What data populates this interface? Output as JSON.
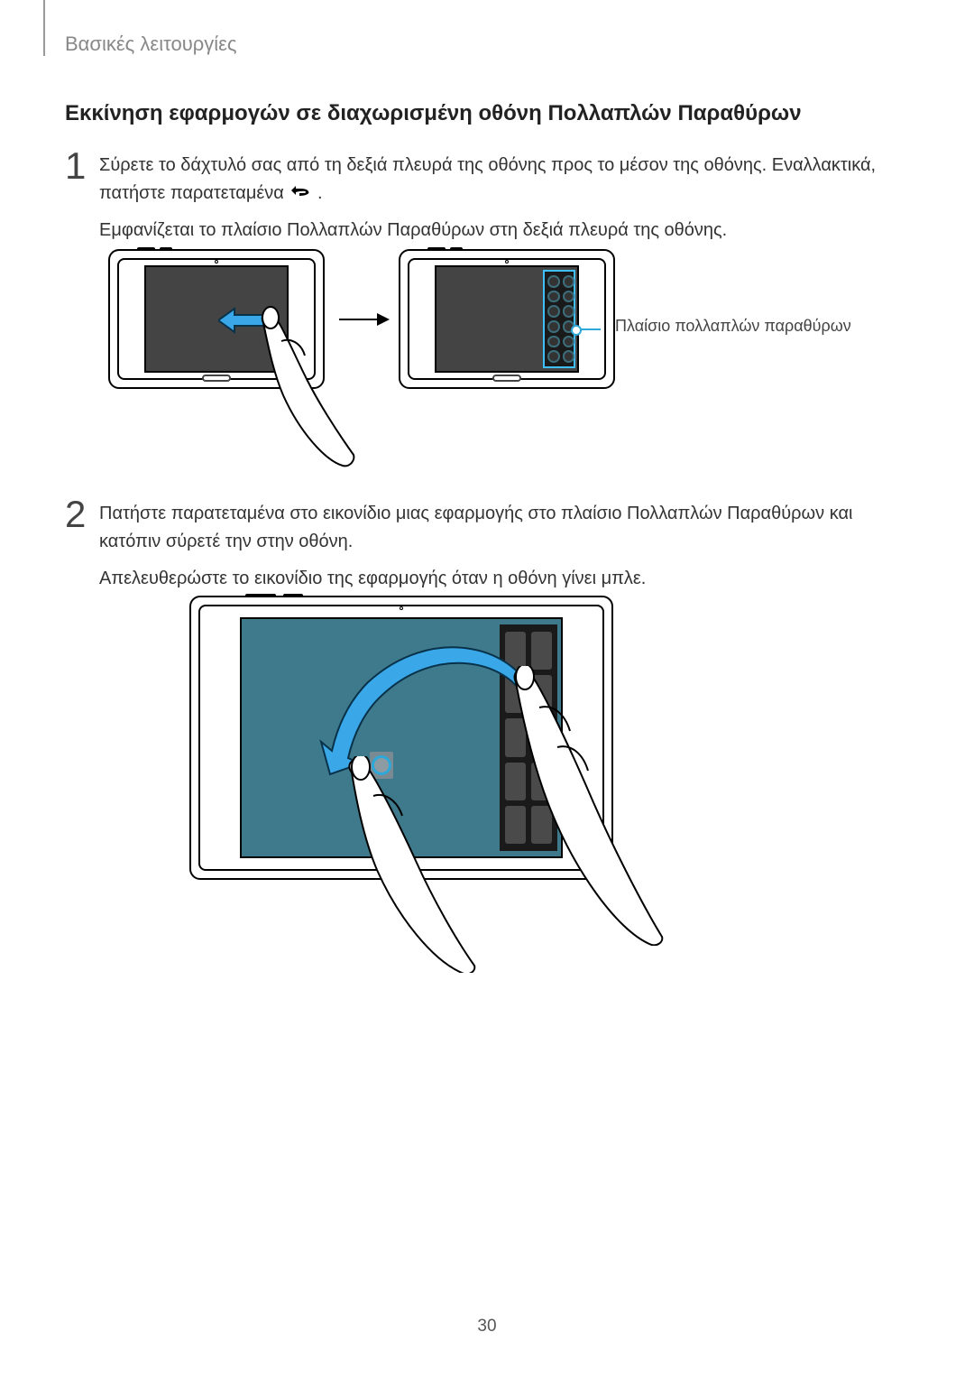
{
  "page": {
    "header": "Βασικές λειτουργίες",
    "title": "Εκκίνηση εφαρμογών σε διαχωρισμένη οθόνη Πολλαπλών Παραθύρων",
    "pageNumber": "30"
  },
  "steps": {
    "s1": {
      "num": "1",
      "p1a": "Σύρετε το δάχτυλό σας από τη δεξιά πλευρά της οθόνης προς το μέσον της οθόνης. Εναλλακτικά, πατήστε παρατεταμένα ",
      "p1b": ".",
      "p2": "Εμφανίζεται το πλαίσιο Πολλαπλών Παραθύρων στη δεξιά πλευρά της οθόνης."
    },
    "s2": {
      "num": "2",
      "p1": "Πατήστε παρατεταμένα στο εικονίδιο μιας εφαρμογής στο πλαίσιο Πολλαπλών Παραθύρων και κατόπιν σύρετέ την στην οθόνη.",
      "p2": "Απελευθερώστε το εικονίδιο της εφαρμογής όταν η οθόνη γίνει μπλε."
    }
  },
  "figure1": {
    "calloutLabel": "Πλαίσιο πολλαπλών παραθύρων",
    "trayDots": 12,
    "colors": {
      "callout": "#2ea8d9",
      "arrowFill": "#3aa8e8",
      "screen": "#444444",
      "trayBorder": "#40bfff"
    }
  },
  "figure2": {
    "trayItems": 10,
    "colors": {
      "screen": "#3f7a8c",
      "arrowFill": "#3aa8e8",
      "trayItem": "#4a4a4a"
    }
  }
}
